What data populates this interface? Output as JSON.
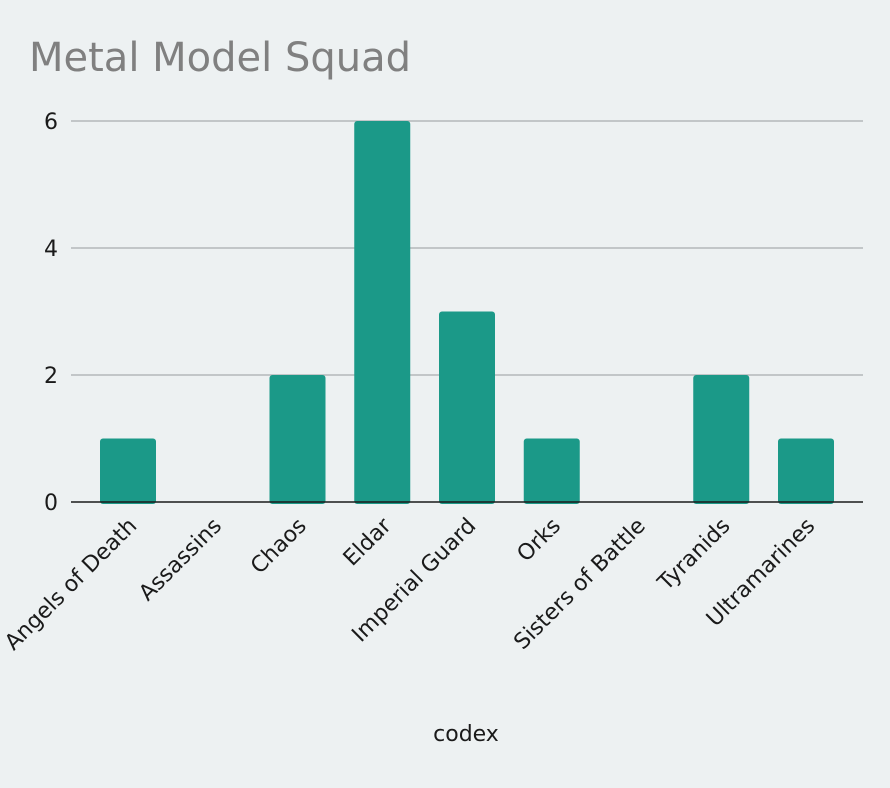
{
  "chart_data": {
    "type": "bar",
    "title": "Metal Model Squad",
    "xlabel": "codex",
    "ylabel": "",
    "categories": [
      "Angels of Death",
      "Assassins",
      "Chaos",
      "Eldar",
      "Imperial Guard",
      "Orks",
      "Sisters of Battle",
      "Tyranids",
      "Ultramarines"
    ],
    "values": [
      1,
      0,
      2,
      6,
      3,
      1,
      0,
      2,
      1
    ],
    "ylim": [
      0,
      6
    ],
    "yticks": [
      0,
      2,
      4,
      6
    ],
    "grid": true,
    "colors": {
      "bar": "#1b9988"
    }
  }
}
